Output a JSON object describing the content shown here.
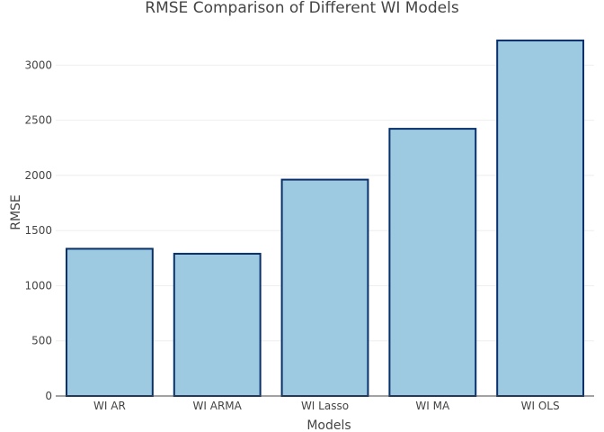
{
  "chart_data": {
    "type": "bar",
    "title": "RMSE Comparison of Different WI Models",
    "xlabel": "Models",
    "ylabel": "RMSE",
    "categories": [
      "WI AR",
      "WI ARMA",
      "WI Lasso",
      "WI MA",
      "WI OLS"
    ],
    "values": [
      1335,
      1290,
      1962,
      2423,
      3224
    ],
    "ylim": [
      0,
      3395
    ],
    "yticks": [
      0,
      500,
      1000,
      1500,
      2000,
      2500,
      3000
    ],
    "grid": true,
    "bar_fill_color": "#9ecae1",
    "bar_edge_color": "#08306b"
  }
}
